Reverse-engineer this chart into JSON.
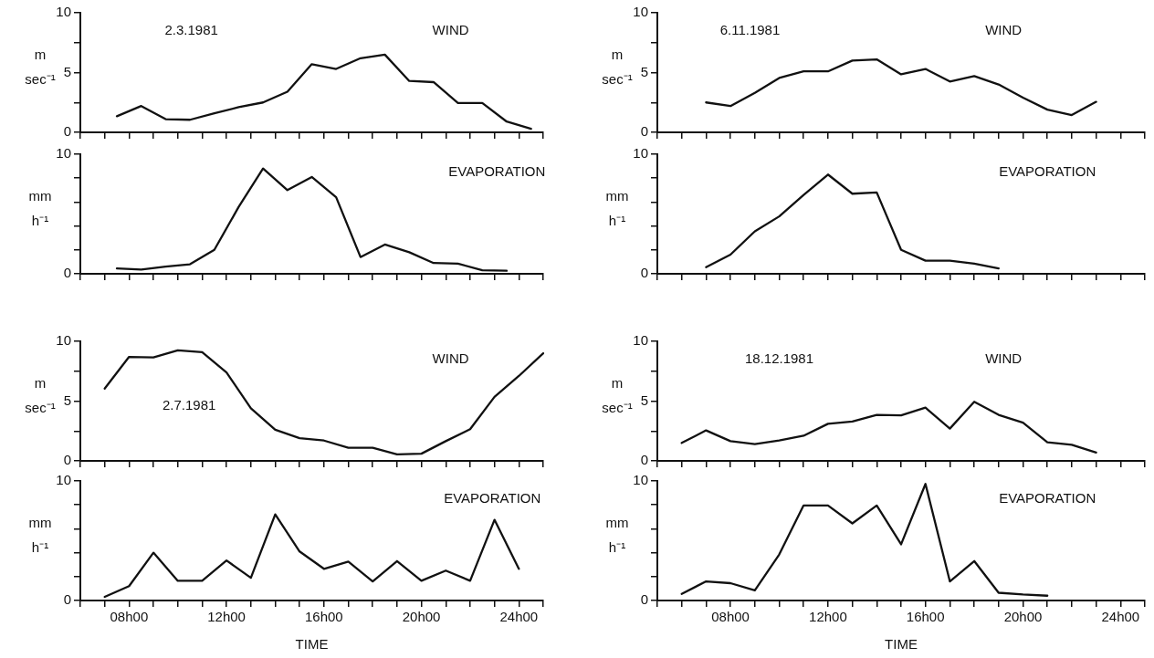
{
  "chart_data": [
    {
      "type": "line",
      "title": "WIND",
      "ylabel": "m sec⁻¹",
      "annotations": [
        "2.3.1981"
      ],
      "ylim": [
        0,
        10
      ],
      "yticks": [
        0,
        {
          "value": 2.5,
          "label": null
        },
        5,
        {
          "value": 7.5,
          "label": null
        },
        10
      ],
      "categories": [
        null,
        null,
        null,
        null,
        null,
        null,
        null,
        null,
        null,
        null,
        null,
        null,
        null,
        null,
        null,
        null,
        null,
        null,
        null
      ],
      "series": [
        {
          "color": "#111111",
          "values": [
            null,
            1.35,
            2.2,
            1.1,
            1.05,
            1.6,
            2.1,
            2.5,
            3.4,
            5.7,
            5.3,
            6.2,
            6.5,
            4.3,
            4.2,
            2.45,
            2.45,
            0.9,
            0.3
          ]
        }
      ]
    },
    {
      "type": "line",
      "title": "WIND",
      "ylabel": "m sec⁻¹",
      "annotations": [
        "6.11.1981"
      ],
      "ylim": [
        0,
        10
      ],
      "yticks": [
        0,
        {
          "value": 2.5,
          "label": null
        },
        5,
        {
          "value": 7.5,
          "label": null
        },
        10
      ],
      "categories": [
        null,
        null,
        null,
        null,
        null,
        null,
        null,
        null,
        null,
        null,
        null,
        null,
        null,
        null,
        null,
        null,
        null,
        null,
        null,
        null,
        null
      ],
      "series": [
        {
          "color": "#111111",
          "values": [
            null,
            null,
            2.5,
            2.2,
            3.3,
            4.55,
            5.1,
            5.1,
            6.0,
            6.1,
            4.85,
            5.3,
            4.25,
            4.7,
            4.0,
            2.9,
            1.9,
            1.45,
            2.55,
            null,
            null
          ]
        }
      ]
    },
    {
      "type": "line",
      "title": "EVAPORATION",
      "ylabel": "mm h⁻¹",
      "ylim": [
        0,
        10
      ],
      "yticks": [
        0,
        {
          "value": 2,
          "label": null
        },
        {
          "value": 4,
          "label": null
        },
        {
          "value": 6,
          "label": null
        },
        {
          "value": 8,
          "label": null
        },
        10
      ],
      "categories": [
        null,
        null,
        null,
        null,
        null,
        null,
        null,
        null,
        null,
        null,
        null,
        null,
        null,
        null,
        null,
        null,
        null,
        null,
        null
      ],
      "series": [
        {
          "color": "#111111",
          "values": [
            null,
            0.45,
            0.35,
            0.6,
            0.8,
            2.0,
            5.6,
            8.8,
            7.0,
            8.1,
            6.4,
            1.4,
            2.45,
            1.8,
            0.9,
            0.85,
            0.3,
            0.25,
            null
          ]
        }
      ]
    },
    {
      "type": "line",
      "title": "EVAPORATION",
      "ylabel": "mm h⁻¹",
      "ylim": [
        0,
        10
      ],
      "yticks": [
        0,
        {
          "value": 2,
          "label": null
        },
        {
          "value": 4,
          "label": null
        },
        {
          "value": 6,
          "label": null
        },
        {
          "value": 8,
          "label": null
        },
        10
      ],
      "categories": [
        null,
        null,
        null,
        null,
        null,
        null,
        null,
        null,
        null,
        null,
        null,
        null,
        null,
        null,
        null,
        null,
        null,
        null,
        null,
        null,
        null
      ],
      "series": [
        {
          "color": "#111111",
          "values": [
            null,
            null,
            0.55,
            1.6,
            3.55,
            4.8,
            6.6,
            8.3,
            6.7,
            6.8,
            2.0,
            1.1,
            1.1,
            0.85,
            0.45,
            null,
            null,
            null,
            null,
            null,
            null
          ]
        }
      ]
    },
    {
      "type": "line",
      "title": "WIND",
      "ylabel": "m sec⁻¹",
      "annotations": [
        "2.7.1981"
      ],
      "ylim": [
        0,
        10
      ],
      "yticks": [
        0,
        {
          "value": 2.5,
          "label": null
        },
        5,
        {
          "value": 7.5,
          "label": null
        },
        10
      ],
      "categories": [
        null,
        null,
        null,
        null,
        null,
        null,
        null,
        null,
        null,
        null,
        null,
        null,
        null,
        null,
        null,
        null,
        null,
        null,
        null,
        null
      ],
      "series": [
        {
          "color": "#111111",
          "values": [
            null,
            6.05,
            8.7,
            8.65,
            9.25,
            9.1,
            7.4,
            4.4,
            2.6,
            1.9,
            1.7,
            1.1,
            1.1,
            0.55,
            0.6,
            1.65,
            2.65,
            5.35,
            7.1,
            9.0
          ]
        }
      ]
    },
    {
      "type": "line",
      "title": "WIND",
      "ylabel": "m sec⁻¹",
      "annotations": [
        "18.12.1981"
      ],
      "ylim": [
        0,
        10
      ],
      "yticks": [
        0,
        {
          "value": 2.5,
          "label": null
        },
        5,
        {
          "value": 7.5,
          "label": null
        },
        10
      ],
      "categories": [
        null,
        null,
        null,
        null,
        null,
        null,
        null,
        null,
        null,
        null,
        null,
        null,
        null,
        null,
        null,
        null,
        null,
        null,
        null,
        null,
        null
      ],
      "series": [
        {
          "color": "#111111",
          "values": [
            null,
            1.5,
            2.55,
            1.65,
            1.4,
            1.7,
            2.1,
            3.1,
            3.3,
            3.85,
            3.8,
            4.45,
            2.7,
            4.95,
            3.85,
            3.2,
            1.55,
            1.35,
            0.7,
            null,
            null
          ]
        }
      ]
    },
    {
      "type": "line",
      "title": "EVAPORATION",
      "ylabel": "mm h⁻¹",
      "xlabel": "TIME",
      "ylim": [
        0,
        10
      ],
      "yticks": [
        0,
        {
          "value": 2,
          "label": null
        },
        {
          "value": 4,
          "label": null
        },
        {
          "value": 6,
          "label": null
        },
        {
          "value": 8,
          "label": null
        },
        10
      ],
      "categories": [
        null,
        null,
        "08h00",
        null,
        null,
        null,
        "12h00",
        null,
        null,
        null,
        "16h00",
        null,
        null,
        null,
        "20h00",
        null,
        null,
        null,
        "24h00",
        null
      ],
      "series": [
        {
          "color": "#111111",
          "values": [
            null,
            0.3,
            1.2,
            4.0,
            1.65,
            1.65,
            3.35,
            1.9,
            7.2,
            4.1,
            2.65,
            3.25,
            1.6,
            3.3,
            1.65,
            2.5,
            1.65,
            6.75,
            2.65,
            null
          ]
        }
      ]
    },
    {
      "type": "line",
      "title": "EVAPORATION",
      "ylabel": "mm h⁻¹",
      "xlabel": "TIME",
      "ylim": [
        0,
        10
      ],
      "yticks": [
        0,
        {
          "value": 2,
          "label": null
        },
        {
          "value": 4,
          "label": null
        },
        {
          "value": 6,
          "label": null
        },
        {
          "value": 8,
          "label": null
        },
        10
      ],
      "categories": [
        null,
        null,
        null,
        "08h00",
        null,
        null,
        null,
        "12h00",
        null,
        null,
        null,
        "16h00",
        null,
        null,
        null,
        "20h00",
        null,
        null,
        null,
        "24h00",
        null
      ],
      "series": [
        {
          "color": "#111111",
          "values": [
            null,
            0.55,
            1.6,
            1.45,
            0.85,
            3.85,
            7.95,
            7.95,
            6.45,
            7.95,
            4.7,
            9.75,
            1.6,
            3.3,
            0.65,
            0.5,
            0.4,
            null,
            null,
            null,
            null
          ]
        }
      ]
    }
  ]
}
